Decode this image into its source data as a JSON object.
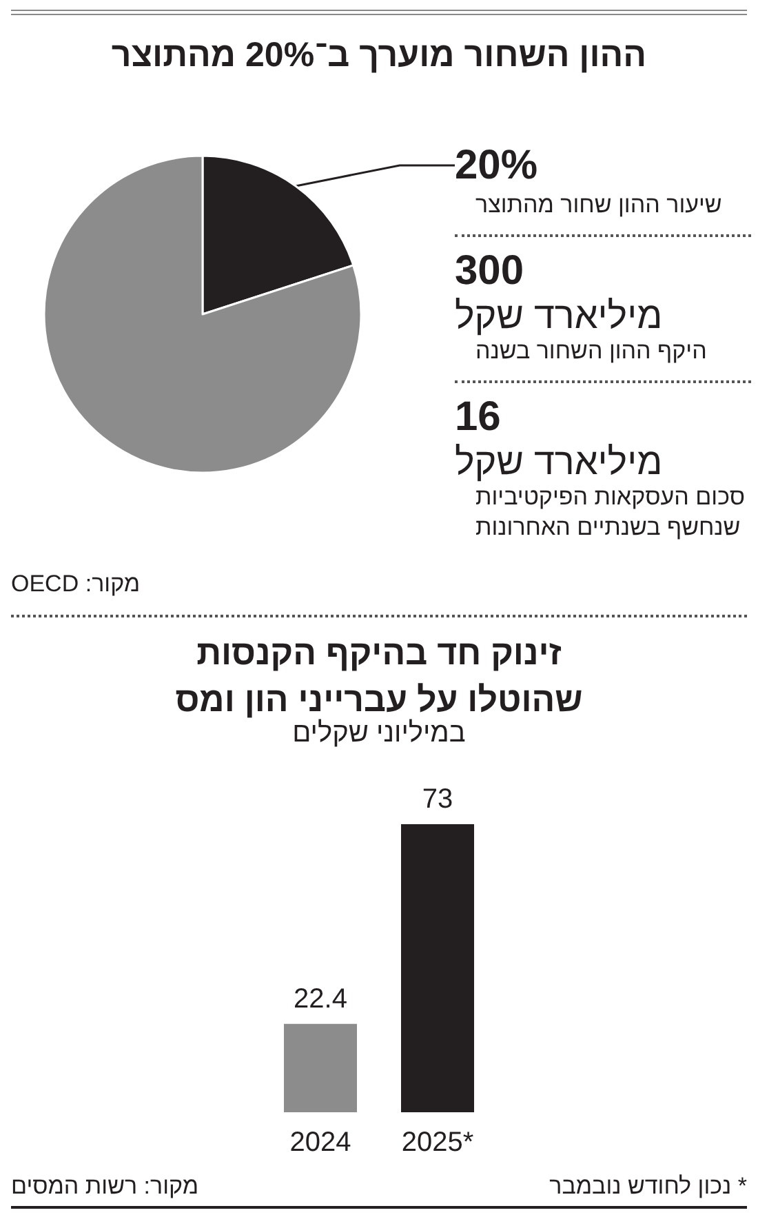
{
  "chart_data": [
    {
      "type": "pie",
      "title": "ההון השחור מוערך ב־20% מהתוצר",
      "categories": [
        null,
        null
      ],
      "values": [
        20,
        80
      ],
      "colors": [
        "#231f20",
        "#8c8c8c"
      ],
      "value_labels": [
        "20%",
        null
      ],
      "annotations": [
        "שיעור ההון שחור מהתוצר",
        "300",
        "מיליארד שקל",
        "היקף ההון השחור בשנה",
        "16",
        "מיליארד שקל",
        "סכום העסקאות הפיקטיביות שנחשף בשנתיים האחרונות",
        "מקור: OECD"
      ]
    },
    {
      "type": "bar",
      "title": "זינוק חד בהיקף הקנסות שהוטלו על עברייני הון ומס",
      "subtitle": "במיליוני שקלים",
      "categories": [
        "2024",
        "2025*"
      ],
      "values": [
        22.4,
        73
      ],
      "colors": [
        "#8c8c8c",
        "#231f20"
      ],
      "data_labels": true,
      "annotations": [
        "* נכון לחודש נובמבר",
        "מקור: רשות המסים"
      ]
    }
  ]
}
